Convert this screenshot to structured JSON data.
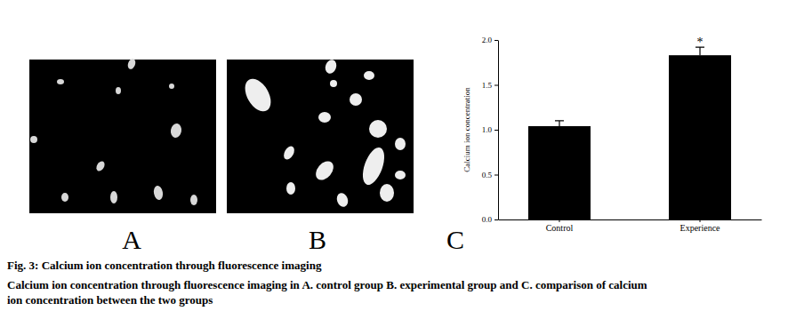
{
  "chart_data": {
    "type": "bar",
    "ylabel": "Calcium ion concentration",
    "categories": [
      "Control",
      "Experience"
    ],
    "values": [
      1.04,
      1.83
    ],
    "errors": [
      0.06,
      0.09
    ],
    "color": "#000000",
    "ylim": [
      0,
      2.0
    ],
    "yticks": [
      {
        "value": 0,
        "label": "0.0"
      },
      {
        "value": 0.5,
        "label": "0.5"
      },
      {
        "value": 1.0,
        "label": "1.0"
      },
      {
        "value": 1.5,
        "label": "1.5"
      },
      {
        "value": 2.0,
        "label": "2.0"
      }
    ],
    "grid": false,
    "annotations": [
      {
        "x": "Experience",
        "text": "*"
      }
    ]
  },
  "figure": {
    "panel_labels": [
      "A",
      "B",
      "C"
    ],
    "caption": [
      "Fig. 3: Calcium ion concentration through fluorescence imaging",
      "Calcium ion concentration through fluorescence imaging in A. control group B. experimental group and C. comparison of calcium",
      "ion concentration between the two groups"
    ]
  }
}
